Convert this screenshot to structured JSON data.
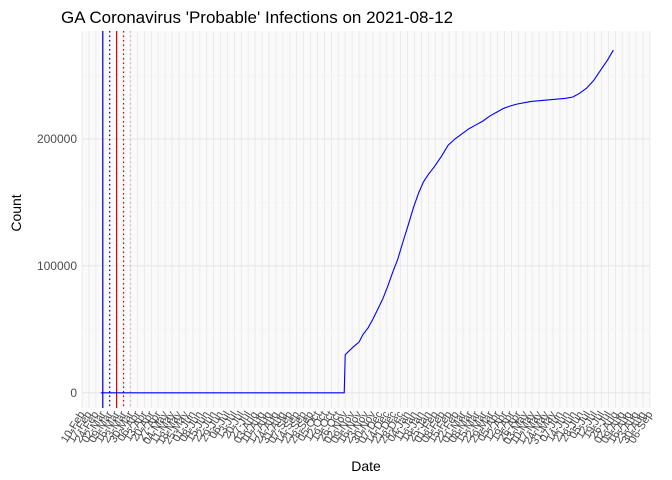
{
  "chart_data": {
    "type": "line",
    "title": "GA Coronavirus 'Probable' Infections on 2021-08-12",
    "xlabel": "Date",
    "ylabel": "Count",
    "xlim": [
      "2020-02-10",
      "2021-09-06"
    ],
    "ylim": [
      -12000,
      285000
    ],
    "yticks": [
      0,
      100000,
      200000
    ],
    "ytick_labels": [
      "0",
      "100000",
      "200000"
    ],
    "grid": "on",
    "legend": "none",
    "xtick_labels": [
      "10-Feb",
      "17-Feb",
      "24-Feb",
      "02-Mar",
      "09-Mar",
      "16-Mar",
      "23-Mar",
      "30-Mar",
      "06-Apr",
      "13-Apr",
      "20-Apr",
      "27-Apr",
      "04-May",
      "11-May",
      "18-May",
      "25-May",
      "01-Jun",
      "08-Jun",
      "15-Jun",
      "22-Jun",
      "29-Jun",
      "06-Jul",
      "13-Jul",
      "20-Jul",
      "27-Jul",
      "03-Aug",
      "10-Aug",
      "17-Aug",
      "24-Aug",
      "31-Aug",
      "07-Sep",
      "14-Sep",
      "21-Sep",
      "28-Sep",
      "05-Oct",
      "12-Oct",
      "19-Oct",
      "26-Oct",
      "02-Nov",
      "09-Nov",
      "16-Nov",
      "23-Nov",
      "30-Nov",
      "07-Dec",
      "14-Dec",
      "21-Dec",
      "28-Dec",
      "04-Jan",
      "11-Jan",
      "18-Jan",
      "25-Jan",
      "01-Feb",
      "08-Feb",
      "15-Feb",
      "22-Feb",
      "01-Mar",
      "08-Mar",
      "15-Mar",
      "22-Mar",
      "29-Mar",
      "05-Apr",
      "12-Apr",
      "19-Apr",
      "26-Apr",
      "03-May",
      "10-May",
      "17-May",
      "24-May",
      "31-May",
      "07-Jun",
      "14-Jun",
      "21-Jun",
      "28-Jun",
      "05-Jul",
      "12-Jul",
      "19-Jul",
      "26-Jul",
      "02-Aug",
      "09-Aug",
      "16-Aug",
      "23-Aug",
      "30-Aug",
      "06-Sep"
    ],
    "vlines": [
      {
        "date": "2020-03-02",
        "color": "#0000cd",
        "style": "solid"
      },
      {
        "date": "2020-03-09",
        "color": "#0000cd",
        "style": "dotted"
      },
      {
        "date": "2020-03-16",
        "color": "#cc0000",
        "style": "solid"
      },
      {
        "date": "2020-03-23",
        "color": "#cc0000",
        "style": "dotted"
      },
      {
        "date": "2020-03-30",
        "color": "#f4a3a3",
        "style": "dotted"
      }
    ],
    "series": [
      {
        "color": "#0000ff",
        "points": [
          [
            "2020-02-29",
            0
          ],
          [
            "2020-11-01",
            0
          ],
          [
            "2020-11-02",
            30000
          ],
          [
            "2020-11-06",
            33000
          ],
          [
            "2020-11-10",
            36000
          ],
          [
            "2020-11-16",
            40000
          ],
          [
            "2020-11-20",
            46000
          ],
          [
            "2020-11-25",
            51000
          ],
          [
            "2020-11-30",
            58000
          ],
          [
            "2020-12-05",
            66000
          ],
          [
            "2020-12-10",
            74000
          ],
          [
            "2020-12-15",
            84000
          ],
          [
            "2020-12-20",
            95000
          ],
          [
            "2020-12-25",
            105000
          ],
          [
            "2020-12-30",
            118000
          ],
          [
            "2021-01-05",
            133000
          ],
          [
            "2021-01-10",
            146000
          ],
          [
            "2021-01-15",
            157000
          ],
          [
            "2021-01-20",
            166000
          ],
          [
            "2021-01-25",
            172000
          ],
          [
            "2021-01-31",
            178000
          ],
          [
            "2021-02-07",
            186000
          ],
          [
            "2021-02-14",
            195000
          ],
          [
            "2021-02-21",
            200000
          ],
          [
            "2021-02-28",
            204000
          ],
          [
            "2021-03-07",
            208000
          ],
          [
            "2021-03-14",
            211000
          ],
          [
            "2021-03-21",
            214000
          ],
          [
            "2021-03-28",
            218000
          ],
          [
            "2021-04-04",
            221000
          ],
          [
            "2021-04-11",
            224000
          ],
          [
            "2021-04-18",
            226000
          ],
          [
            "2021-04-25",
            227500
          ],
          [
            "2021-05-02",
            228500
          ],
          [
            "2021-05-09",
            229500
          ],
          [
            "2021-05-16",
            230000
          ],
          [
            "2021-05-23",
            230500
          ],
          [
            "2021-05-30",
            231000
          ],
          [
            "2021-06-06",
            231500
          ],
          [
            "2021-06-13",
            232000
          ],
          [
            "2021-06-20",
            233000
          ],
          [
            "2021-06-27",
            236000
          ],
          [
            "2021-07-04",
            240000
          ],
          [
            "2021-07-11",
            246000
          ],
          [
            "2021-07-18",
            254000
          ],
          [
            "2021-07-25",
            262000
          ],
          [
            "2021-07-31",
            270000
          ]
        ]
      }
    ]
  }
}
